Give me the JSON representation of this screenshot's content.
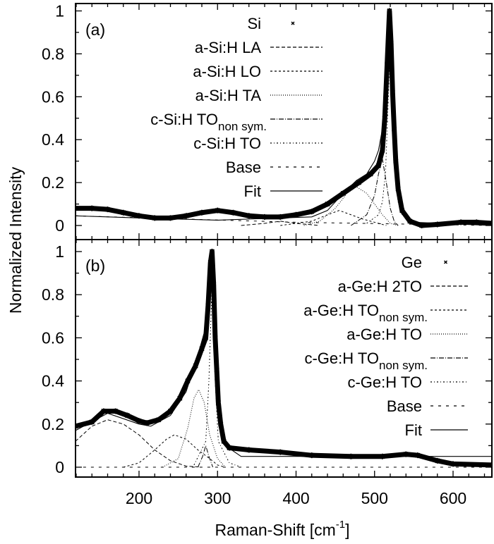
{
  "chart_data": [
    {
      "type": "line",
      "panel_label": "(a)",
      "xlabel": "Raman-Shift [cm-1]",
      "ylabel": "Normalized Intensity",
      "xlim": [
        119,
        650
      ],
      "ylim": [
        -0.05,
        1.05
      ],
      "xticks": [
        200,
        300,
        400,
        500,
        600
      ],
      "yticks": [
        "0",
        "0.2",
        "0.4",
        "0.6",
        "0.8",
        "1"
      ],
      "grid": false,
      "legend_position": "top-center",
      "series": [
        {
          "name": "Si",
          "style": "markers",
          "points": [
            [
              119,
              0.08
            ],
            [
              140,
              0.08
            ],
            [
              160,
              0.075
            ],
            [
              180,
              0.06
            ],
            [
              200,
              0.045
            ],
            [
              220,
              0.035
            ],
            [
              240,
              0.035
            ],
            [
              260,
              0.045
            ],
            [
              280,
              0.06
            ],
            [
              300,
              0.07
            ],
            [
              320,
              0.06
            ],
            [
              340,
              0.045
            ],
            [
              360,
              0.04
            ],
            [
              380,
              0.04
            ],
            [
              400,
              0.05
            ],
            [
              420,
              0.065
            ],
            [
              440,
              0.1
            ],
            [
              460,
              0.15
            ],
            [
              480,
              0.2
            ],
            [
              495,
              0.24
            ],
            [
              505,
              0.28
            ],
            [
              510,
              0.35
            ],
            [
              513,
              0.5
            ],
            [
              516,
              0.75
            ],
            [
              519,
              1.0
            ],
            [
              521,
              0.85
            ],
            [
              523,
              0.62
            ],
            [
              525,
              0.45
            ],
            [
              527,
              0.3
            ],
            [
              530,
              0.17
            ],
            [
              535,
              0.07
            ],
            [
              545,
              0.02
            ],
            [
              560,
              0.0
            ],
            [
              580,
              0.005
            ],
            [
              610,
              0.015
            ],
            [
              630,
              0.015
            ],
            [
              650,
              0.01
            ]
          ]
        },
        {
          "name": "a-Si:H LA",
          "style": "dash",
          "points": [
            [
              330,
              0
            ],
            [
              360,
              0.01
            ],
            [
              380,
              0.02
            ],
            [
              400,
              0.01
            ],
            [
              430,
              0
            ]
          ]
        },
        {
          "name": "a-Si:H LO",
          "style": "shortdash",
          "points": [
            [
              380,
              0
            ],
            [
              420,
              0.02
            ],
            [
              440,
              0.05
            ],
            [
              455,
              0.07
            ],
            [
              470,
              0.05
            ],
            [
              485,
              0.03
            ],
            [
              500,
              0.015
            ],
            [
              515,
              0
            ]
          ]
        },
        {
          "name": "a-Si:H TA",
          "style": "dot",
          "points": [
            [
              410,
              0
            ],
            [
              430,
              0.02
            ],
            [
              450,
              0.08
            ],
            [
              465,
              0.15
            ],
            [
              477,
              0.18
            ],
            [
              490,
              0.15
            ],
            [
              500,
              0.1
            ],
            [
              510,
              0.05
            ],
            [
              520,
              0.01
            ],
            [
              530,
              0
            ]
          ]
        },
        {
          "name": "c-Si:H TO",
          "subscript": "non sym.",
          "style": "dashdot",
          "points": [
            [
              470,
              0
            ],
            [
              490,
              0.05
            ],
            [
              500,
              0.14
            ],
            [
              505,
              0.24
            ],
            [
              510,
              0.31
            ],
            [
              515,
              0.2
            ],
            [
              520,
              0.08
            ],
            [
              525,
              0.02
            ],
            [
              530,
              0
            ]
          ]
        },
        {
          "name": "c-Si:H TO",
          "style": "dashdotdot",
          "points": [
            [
              490,
              0.01
            ],
            [
              505,
              0.05
            ],
            [
              510,
              0.11
            ],
            [
              514,
              0.25
            ],
            [
              517,
              0.54
            ],
            [
              520,
              0.85
            ],
            [
              523,
              0.54
            ],
            [
              526,
              0.25
            ],
            [
              530,
              0.11
            ],
            [
              535,
              0.05
            ],
            [
              550,
              0.01
            ]
          ]
        },
        {
          "name": "Base",
          "style": "longdash",
          "points": [
            [
              119,
              0.045
            ],
            [
              400,
              0.015
            ],
            [
              650,
              0
            ]
          ]
        },
        {
          "name": "Fit",
          "style": "solid",
          "points": [
            [
              119,
              0.045
            ],
            [
              200,
              0.035
            ],
            [
              300,
              0.025
            ],
            [
              380,
              0.035
            ],
            [
              420,
              0.04
            ],
            [
              440,
              0.07
            ],
            [
              460,
              0.15
            ],
            [
              477,
              0.21
            ],
            [
              490,
              0.24
            ],
            [
              500,
              0.3
            ],
            [
              505,
              0.35
            ],
            [
              510,
              0.45
            ],
            [
              515,
              0.75
            ],
            [
              520,
              1.0
            ],
            [
              523,
              0.7
            ],
            [
              526,
              0.35
            ],
            [
              530,
              0.15
            ],
            [
              540,
              0.05
            ],
            [
              550,
              0.015
            ],
            [
              650,
              0
            ]
          ]
        }
      ]
    },
    {
      "type": "line",
      "panel_label": "(b)",
      "xlabel": "Raman-Shift [cm-1]",
      "ylabel": "Normalized Intensity",
      "xlim": [
        119,
        650
      ],
      "ylim": [
        -0.05,
        1.05
      ],
      "xticks": [
        200,
        300,
        400,
        500,
        600
      ],
      "yticks": [
        "0",
        "0.2",
        "0.4",
        "0.6",
        "0.8",
        "1"
      ],
      "grid": false,
      "legend_position": "top-right",
      "series": [
        {
          "name": "Ge",
          "style": "markers",
          "points": [
            [
              119,
              0.19
            ],
            [
              140,
              0.21
            ],
            [
              155,
              0.26
            ],
            [
              170,
              0.26
            ],
            [
              185,
              0.24
            ],
            [
              200,
              0.215
            ],
            [
              210,
              0.205
            ],
            [
              225,
              0.22
            ],
            [
              240,
              0.26
            ],
            [
              252,
              0.32
            ],
            [
              262,
              0.4
            ],
            [
              272,
              0.47
            ],
            [
              280,
              0.55
            ],
            [
              285,
              0.6
            ],
            [
              288,
              0.75
            ],
            [
              291,
              0.95
            ],
            [
              293,
              1.0
            ],
            [
              295,
              0.85
            ],
            [
              297,
              0.6
            ],
            [
              299,
              0.45
            ],
            [
              301,
              0.3
            ],
            [
              304,
              0.2
            ],
            [
              308,
              0.12
            ],
            [
              315,
              0.09
            ],
            [
              340,
              0.08
            ],
            [
              380,
              0.07
            ],
            [
              420,
              0.055
            ],
            [
              470,
              0.05
            ],
            [
              510,
              0.05
            ],
            [
              540,
              0.06
            ],
            [
              555,
              0.055
            ],
            [
              580,
              0.03
            ],
            [
              600,
              0.015
            ],
            [
              650,
              0.01
            ]
          ]
        },
        {
          "name": "a-Ge:H 2TO",
          "style": "dash",
          "points": [
            [
              119,
              0.12
            ],
            [
              140,
              0.19
            ],
            [
              160,
              0.22
            ],
            [
              180,
              0.2
            ],
            [
              200,
              0.15
            ],
            [
              220,
              0.08
            ],
            [
              240,
              0.03
            ],
            [
              260,
              0.005
            ],
            [
              280,
              0
            ]
          ]
        },
        {
          "name": "a-Ge:H TO",
          "subscript": "non sym.",
          "style": "shortdash",
          "points": [
            [
              180,
              0
            ],
            [
              200,
              0.02
            ],
            [
              220,
              0.08
            ],
            [
              235,
              0.13
            ],
            [
              245,
              0.15
            ],
            [
              260,
              0.13
            ],
            [
              275,
              0.08
            ],
            [
              290,
              0.04
            ],
            [
              300,
              0.01
            ],
            [
              310,
              0
            ]
          ]
        },
        {
          "name": "a-Ge:H TO",
          "style": "dot",
          "points": [
            [
              230,
              0
            ],
            [
              250,
              0.04
            ],
            [
              262,
              0.18
            ],
            [
              270,
              0.32
            ],
            [
              276,
              0.36
            ],
            [
              283,
              0.3
            ],
            [
              290,
              0.15
            ],
            [
              300,
              0.04
            ],
            [
              310,
              0
            ]
          ]
        },
        {
          "name": "c-Ge:H TO",
          "subscript": "non sym.",
          "style": "dashdot",
          "points": [
            [
              275,
              0
            ],
            [
              281,
              0.05
            ],
            [
              285,
              0.1
            ],
            [
              289,
              0.05
            ],
            [
              294,
              0
            ]
          ]
        },
        {
          "name": "c-Ge:H TO",
          "style": "dashdotdot",
          "points": [
            [
              270,
              0.01
            ],
            [
              285,
              0.12
            ],
            [
              289,
              0.4
            ],
            [
              293,
              0.85
            ],
            [
              297,
              0.4
            ],
            [
              301,
              0.12
            ],
            [
              315,
              0.02
            ],
            [
              330,
              0
            ]
          ]
        },
        {
          "name": "Base",
          "style": "longdash",
          "points": [
            [
              119,
              0
            ],
            [
              650,
              0
            ]
          ]
        },
        {
          "name": "Fit",
          "style": "solid",
          "points": [
            [
              119,
              0.17
            ],
            [
              160,
              0.25
            ],
            [
              200,
              0.2
            ],
            [
              215,
              0.19
            ],
            [
              240,
              0.24
            ],
            [
              260,
              0.35
            ],
            [
              275,
              0.52
            ],
            [
              285,
              0.65
            ],
            [
              290,
              0.8
            ],
            [
              293,
              1.0
            ],
            [
              297,
              0.7
            ],
            [
              302,
              0.3
            ],
            [
              310,
              0.1
            ],
            [
              330,
              0.05
            ],
            [
              400,
              0.05
            ],
            [
              650,
              0.05
            ]
          ]
        }
      ]
    }
  ]
}
